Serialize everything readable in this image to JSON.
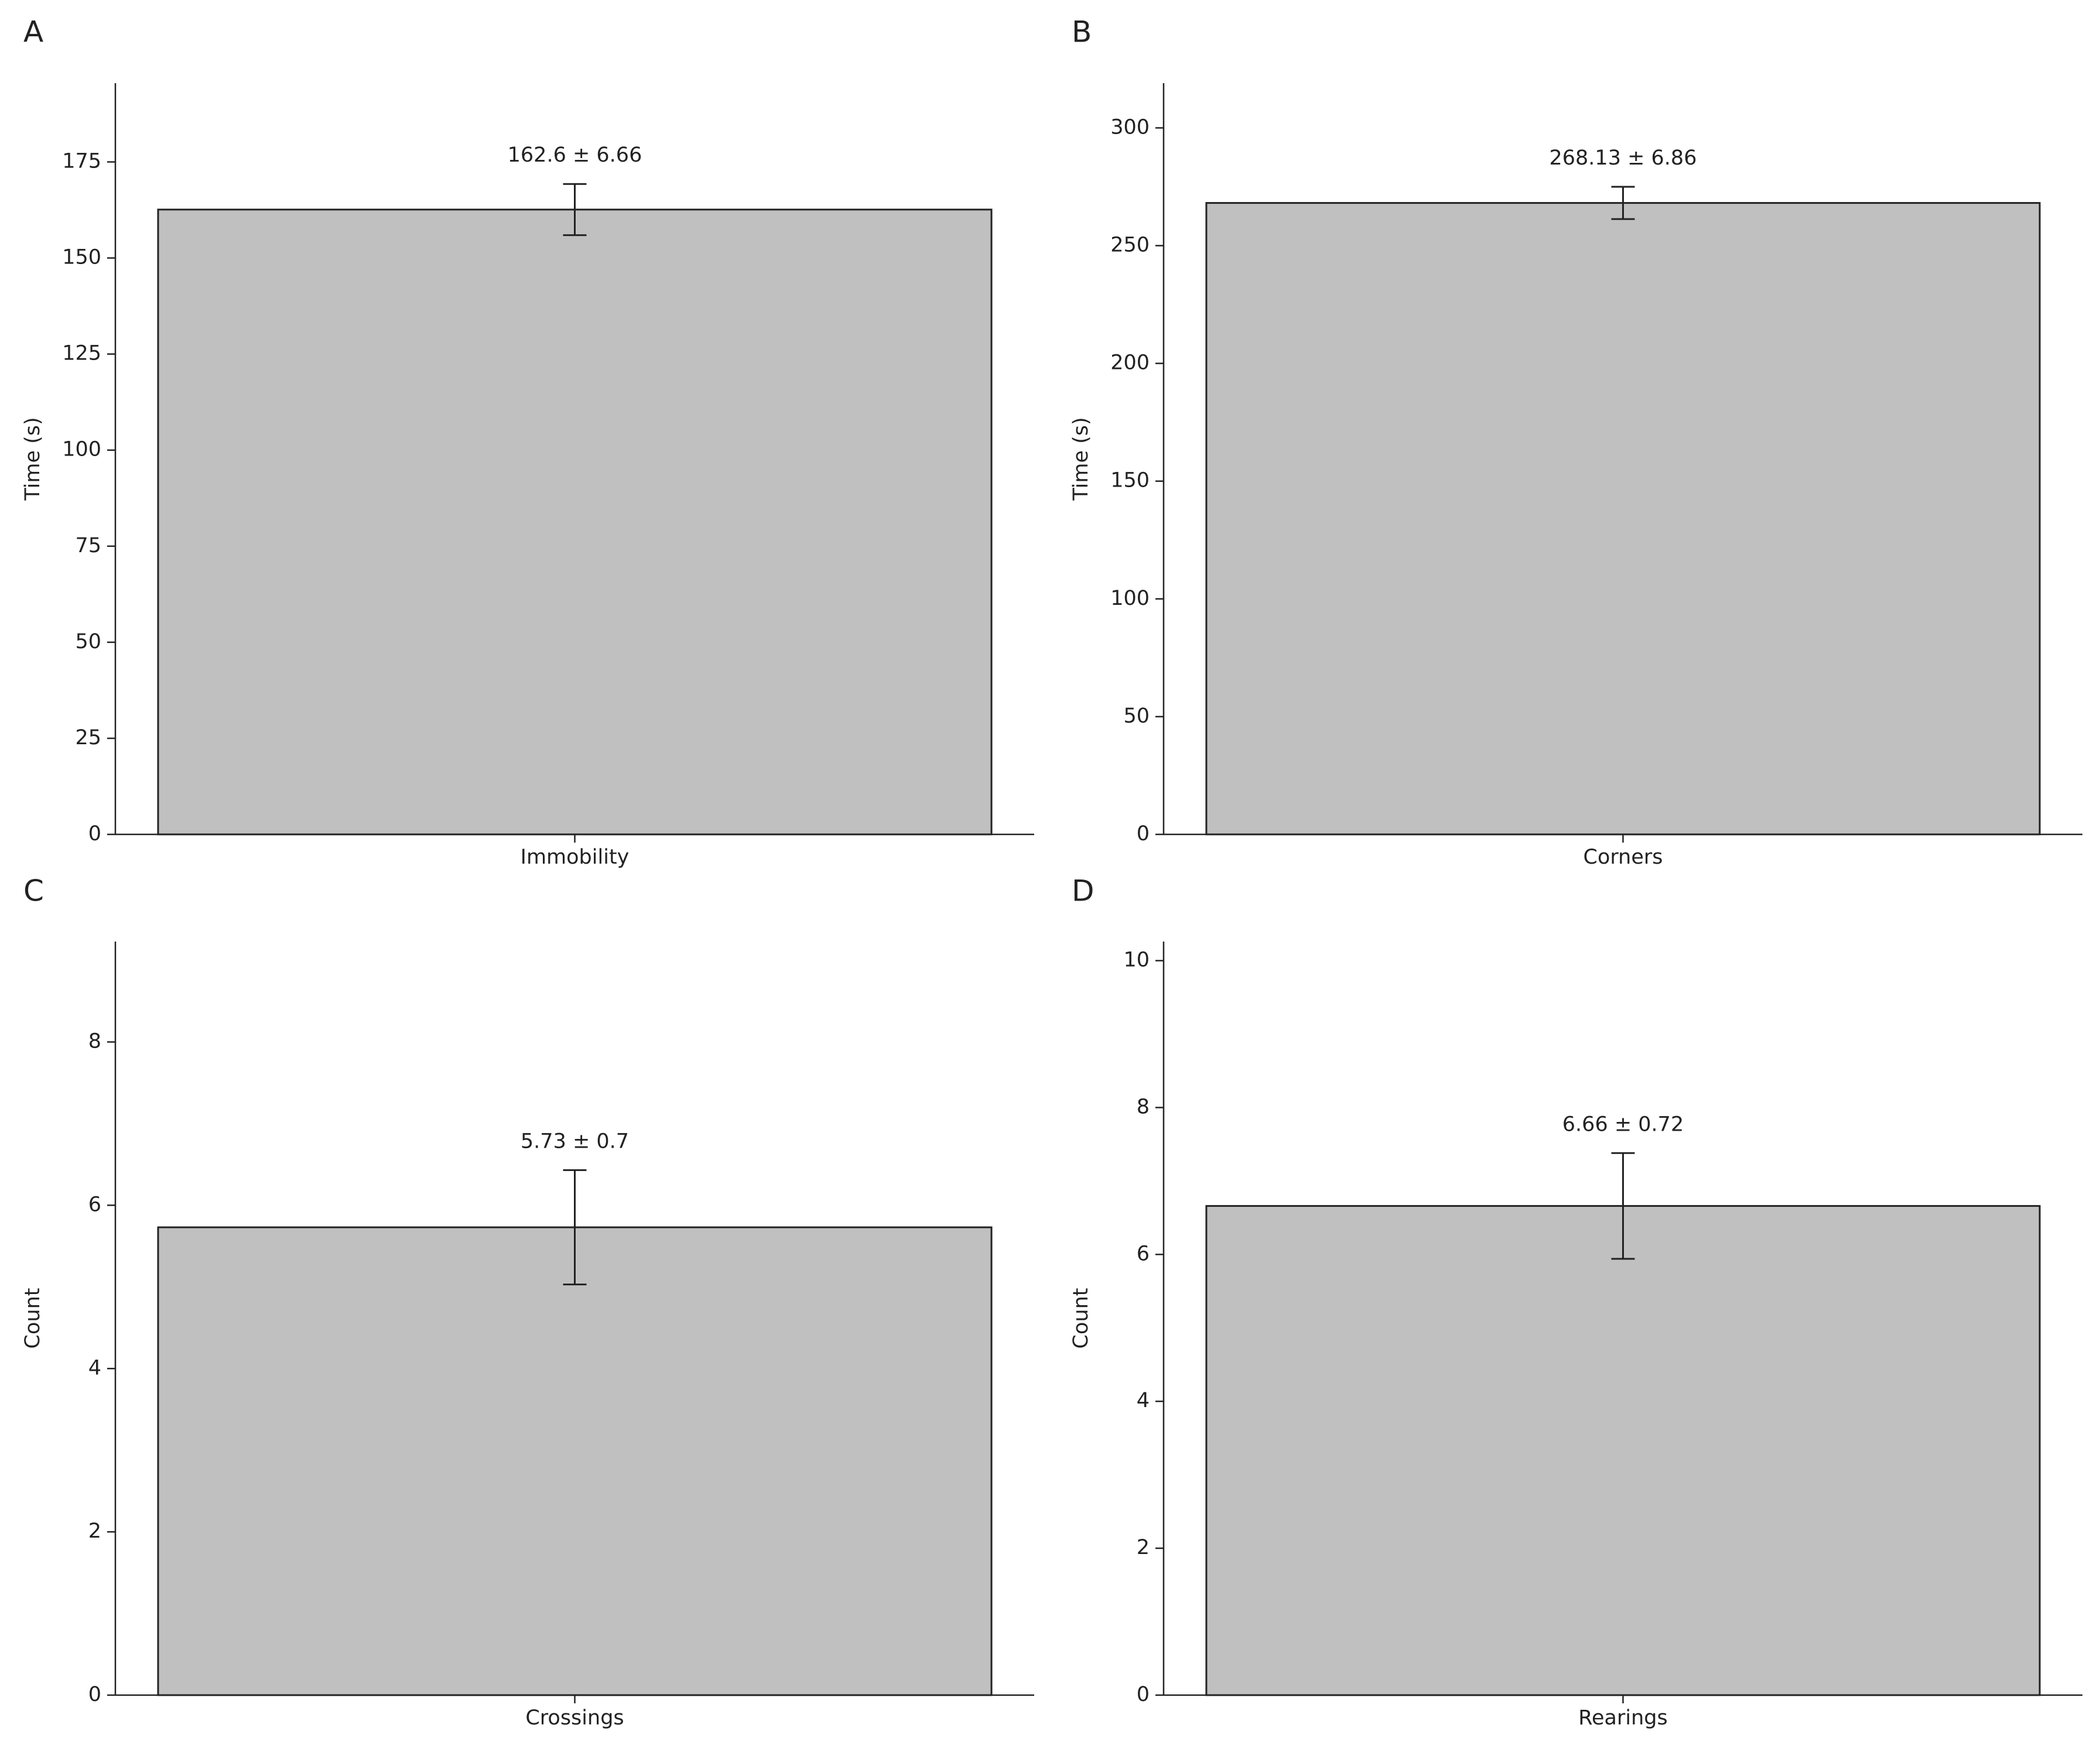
{
  "chart_data": [
    {
      "type": "bar",
      "label": "A",
      "ylabel": "Time (s)",
      "categories": [
        "Immobility"
      ],
      "values": [
        162.6
      ],
      "errors": [
        6.66
      ],
      "value_labels": [
        "162.6 ± 6.66"
      ],
      "color": "#c0c0c0",
      "ylim": [
        0,
        195.5
      ],
      "yticks": [
        0,
        25,
        50,
        75,
        100,
        125,
        150,
        175
      ]
    },
    {
      "type": "bar",
      "label": "B",
      "ylabel": "Time (s)",
      "categories": [
        "Corners"
      ],
      "values": [
        268.13
      ],
      "errors": [
        6.86
      ],
      "value_labels": [
        "268.13 ± 6.86"
      ],
      "color": "#c0c0c0",
      "ylim": [
        0,
        319
      ],
      "yticks": [
        0,
        50,
        100,
        150,
        200,
        250,
        300
      ]
    },
    {
      "type": "bar",
      "label": "C",
      "ylabel": "Count",
      "categories": [
        "Crossings"
      ],
      "values": [
        5.73
      ],
      "errors": [
        0.7
      ],
      "value_labels": [
        "5.73 ± 0.7"
      ],
      "color": "#c0c0c0",
      "ylim": [
        0,
        9.23
      ],
      "yticks": [
        0,
        2,
        4,
        6,
        8
      ]
    },
    {
      "type": "bar",
      "label": "D",
      "ylabel": "Count",
      "categories": [
        "Rearings"
      ],
      "values": [
        6.66
      ],
      "errors": [
        0.72
      ],
      "value_labels": [
        "6.66 ± 0.72"
      ],
      "color": "#c0c0c0",
      "ylim": [
        0,
        10.26
      ],
      "yticks": [
        0,
        2,
        4,
        6,
        8,
        10
      ]
    }
  ]
}
